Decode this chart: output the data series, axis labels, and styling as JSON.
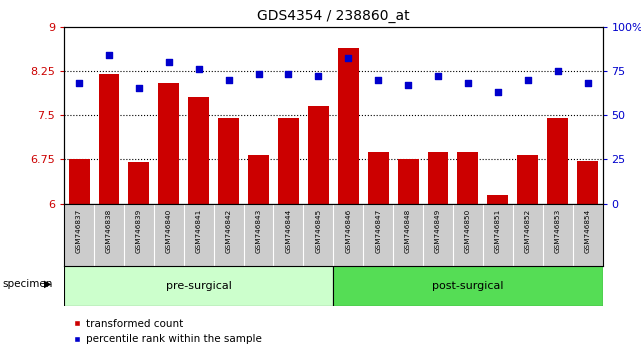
{
  "title": "GDS4354 / 238860_at",
  "samples": [
    "GSM746837",
    "GSM746838",
    "GSM746839",
    "GSM746840",
    "GSM746841",
    "GSM746842",
    "GSM746843",
    "GSM746844",
    "GSM746845",
    "GSM746846",
    "GSM746847",
    "GSM746848",
    "GSM746849",
    "GSM746850",
    "GSM746851",
    "GSM746852",
    "GSM746853",
    "GSM746854"
  ],
  "bar_values": [
    6.75,
    8.19,
    6.7,
    8.05,
    7.8,
    7.45,
    6.82,
    7.45,
    7.65,
    8.63,
    6.87,
    6.75,
    6.87,
    6.87,
    6.15,
    6.82,
    7.45,
    6.72
  ],
  "percentile_values": [
    68,
    84,
    65,
    80,
    76,
    70,
    73,
    73,
    72,
    82,
    70,
    67,
    72,
    68,
    63,
    70,
    75,
    68
  ],
  "pre_surgical_count": 9,
  "post_surgical_count": 9,
  "ylim_left": [
    6,
    9
  ],
  "ylim_right": [
    0,
    100
  ],
  "yticks_left": [
    6,
    6.75,
    7.5,
    8.25,
    9
  ],
  "yticks_right": [
    0,
    25,
    50,
    75,
    100
  ],
  "bar_color": "#cc0000",
  "dot_color": "#0000cc",
  "pre_color": "#ccffcc",
  "post_color": "#55dd55",
  "bar_color_red": "#cc0000",
  "dot_color_blue": "#0000cc",
  "hline_values": [
    6.75,
    7.5,
    8.25
  ],
  "legend_bar_label": "transformed count",
  "legend_dot_label": "percentile rank within the sample",
  "specimen_label": "specimen",
  "pre_label": "pre-surgical",
  "post_label": "post-surgical",
  "title_fontsize": 10,
  "tick_fontsize": 8,
  "label_fontsize": 6
}
